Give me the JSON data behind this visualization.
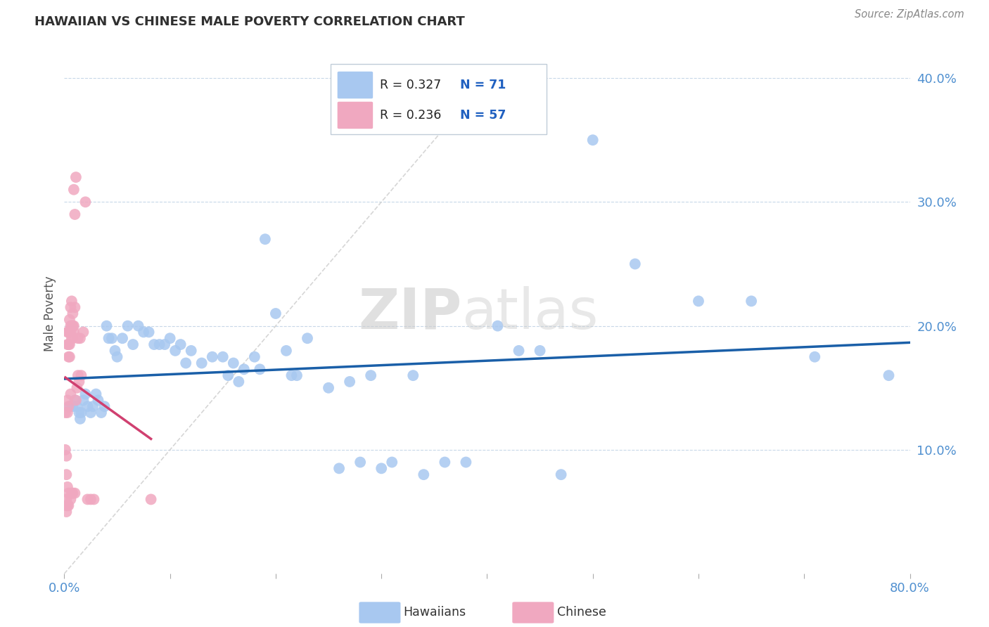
{
  "title": "HAWAIIAN VS CHINESE MALE POVERTY CORRELATION CHART",
  "source": "Source: ZipAtlas.com",
  "ylabel": "Male Poverty",
  "xlim": [
    0.0,
    0.8
  ],
  "ylim": [
    0.0,
    0.42
  ],
  "xticks": [
    0.0,
    0.1,
    0.2,
    0.3,
    0.4,
    0.5,
    0.6,
    0.7,
    0.8
  ],
  "xticklabels": [
    "0.0%",
    "",
    "",
    "",
    "",
    "",
    "",
    "",
    "80.0%"
  ],
  "ytick_positions": [
    0.1,
    0.2,
    0.3,
    0.4
  ],
  "ytick_labels": [
    "10.0%",
    "20.0%",
    "30.0%",
    "40.0%"
  ],
  "legend_r_hawaiian": "R = 0.327",
  "legend_n_hawaiian": "N = 71",
  "legend_r_chinese": "R = 0.236",
  "legend_n_chinese": "N = 57",
  "hawaiian_color": "#a8c8f0",
  "chinese_color": "#f0a8c0",
  "hawaiian_line_color": "#1a5fa8",
  "chinese_line_color": "#d04070",
  "diagonal_color": "#cccccc",
  "watermark_left": "ZIP",
  "watermark_right": "atlas",
  "hawaiian_x": [
    0.005,
    0.008,
    0.01,
    0.012,
    0.014,
    0.015,
    0.016,
    0.018,
    0.02,
    0.022,
    0.025,
    0.027,
    0.03,
    0.032,
    0.035,
    0.038,
    0.04,
    0.042,
    0.045,
    0.048,
    0.05,
    0.055,
    0.06,
    0.065,
    0.07,
    0.075,
    0.08,
    0.085,
    0.09,
    0.095,
    0.1,
    0.105,
    0.11,
    0.115,
    0.12,
    0.13,
    0.14,
    0.15,
    0.155,
    0.16,
    0.165,
    0.17,
    0.18,
    0.185,
    0.19,
    0.2,
    0.21,
    0.215,
    0.22,
    0.23,
    0.25,
    0.26,
    0.27,
    0.28,
    0.29,
    0.3,
    0.31,
    0.33,
    0.34,
    0.36,
    0.38,
    0.41,
    0.43,
    0.45,
    0.47,
    0.5,
    0.54,
    0.6,
    0.65,
    0.71,
    0.78
  ],
  "hawaiian_y": [
    0.135,
    0.135,
    0.14,
    0.135,
    0.13,
    0.125,
    0.13,
    0.14,
    0.145,
    0.135,
    0.13,
    0.135,
    0.145,
    0.14,
    0.13,
    0.135,
    0.2,
    0.19,
    0.19,
    0.18,
    0.175,
    0.19,
    0.2,
    0.185,
    0.2,
    0.195,
    0.195,
    0.185,
    0.185,
    0.185,
    0.19,
    0.18,
    0.185,
    0.17,
    0.18,
    0.17,
    0.175,
    0.175,
    0.16,
    0.17,
    0.155,
    0.165,
    0.175,
    0.165,
    0.27,
    0.21,
    0.18,
    0.16,
    0.16,
    0.19,
    0.15,
    0.085,
    0.155,
    0.09,
    0.16,
    0.085,
    0.09,
    0.16,
    0.08,
    0.09,
    0.09,
    0.2,
    0.18,
    0.18,
    0.08,
    0.35,
    0.25,
    0.22,
    0.22,
    0.175,
    0.16
  ],
  "chinese_x": [
    0.001,
    0.001,
    0.002,
    0.002,
    0.002,
    0.002,
    0.002,
    0.003,
    0.003,
    0.003,
    0.003,
    0.003,
    0.003,
    0.004,
    0.004,
    0.004,
    0.004,
    0.004,
    0.004,
    0.005,
    0.005,
    0.005,
    0.005,
    0.005,
    0.006,
    0.006,
    0.006,
    0.006,
    0.006,
    0.007,
    0.007,
    0.007,
    0.007,
    0.008,
    0.008,
    0.008,
    0.008,
    0.009,
    0.009,
    0.009,
    0.01,
    0.01,
    0.01,
    0.011,
    0.011,
    0.012,
    0.013,
    0.013,
    0.014,
    0.015,
    0.016,
    0.018,
    0.02,
    0.022,
    0.025,
    0.028,
    0.082
  ],
  "chinese_y": [
    0.13,
    0.1,
    0.095,
    0.08,
    0.06,
    0.055,
    0.05,
    0.195,
    0.185,
    0.14,
    0.13,
    0.07,
    0.055,
    0.195,
    0.185,
    0.175,
    0.135,
    0.065,
    0.055,
    0.205,
    0.195,
    0.195,
    0.185,
    0.175,
    0.215,
    0.2,
    0.195,
    0.145,
    0.06,
    0.22,
    0.2,
    0.19,
    0.065,
    0.21,
    0.2,
    0.19,
    0.065,
    0.31,
    0.2,
    0.195,
    0.29,
    0.215,
    0.065,
    0.32,
    0.14,
    0.15,
    0.19,
    0.16,
    0.155,
    0.19,
    0.16,
    0.195,
    0.3,
    0.06,
    0.06,
    0.06,
    0.06
  ]
}
